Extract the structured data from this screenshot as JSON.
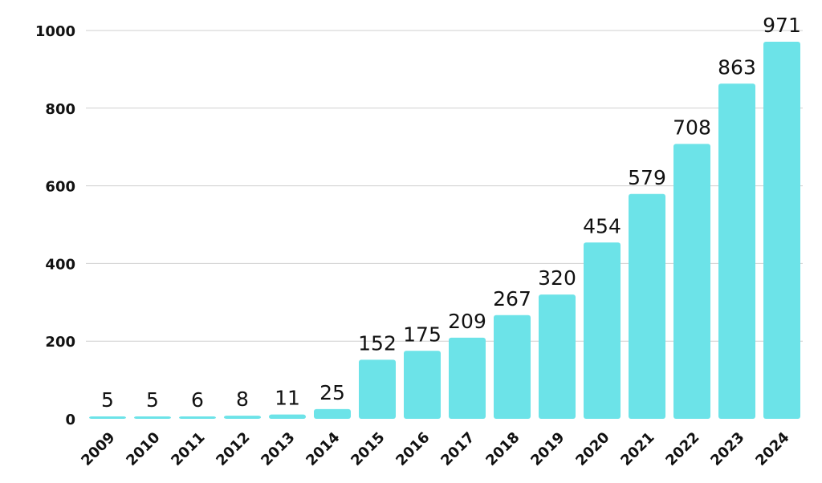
{
  "chart_data": {
    "type": "bar",
    "categories": [
      "2009",
      "2010",
      "2011",
      "2012",
      "2013",
      "2014",
      "2015",
      "2016",
      "2017",
      "2018",
      "2019",
      "2020",
      "2021",
      "2022",
      "2023",
      "2024"
    ],
    "values": [
      5,
      5,
      6,
      8,
      11,
      25,
      152,
      175,
      209,
      267,
      320,
      454,
      579,
      708,
      863,
      971
    ],
    "title": "",
    "xlabel": "",
    "ylabel": "",
    "ylim": [
      0,
      1000
    ],
    "yticks": [
      "0",
      "200",
      "400",
      "600",
      "800",
      "1000"
    ],
    "grid": true,
    "legend": "none",
    "bar_color": "#6ce3e8",
    "gridline_color": "#cfcfcf",
    "text_color": "#111111"
  }
}
